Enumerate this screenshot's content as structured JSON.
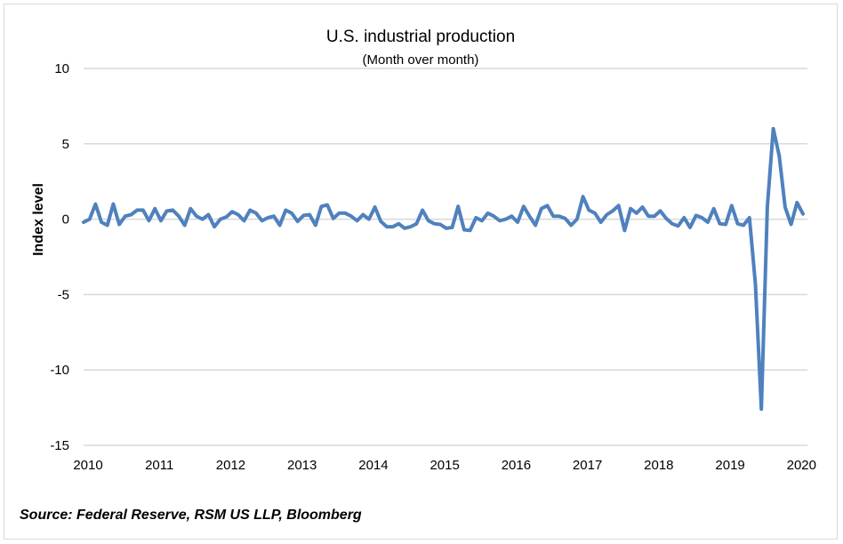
{
  "chart_data": {
    "type": "line",
    "title": "U.S. industrial production",
    "subtitle": "(Month over month)",
    "xlabel": "",
    "ylabel": "Index level",
    "ylim": [
      -15,
      10
    ],
    "yticks": [
      "10",
      "5",
      "0",
      "-5",
      "-10",
      "-15"
    ],
    "xticks": [
      "2010",
      "2011",
      "2012",
      "2013",
      "2014",
      "2015",
      "2016",
      "2017",
      "2018",
      "2019",
      "2020"
    ],
    "grid": true,
    "line_color": "#4f81bd",
    "values": [
      -0.2,
      0,
      1.0,
      -0.2,
      -0.4,
      1.0,
      -0.35,
      0.2,
      0.3,
      0.6,
      0.6,
      -0.1,
      0.7,
      -0.1,
      0.55,
      0.6,
      0.2,
      -0.4,
      0.7,
      0.2,
      0,
      0.3,
      -0.5,
      0,
      0.15,
      0.5,
      0.3,
      -0.1,
      0.6,
      0.4,
      -0.1,
      0.1,
      0.2,
      -0.4,
      0.6,
      0.4,
      -0.15,
      0.25,
      0.3,
      -0.4,
      0.85,
      0.95,
      0.05,
      0.4,
      0.4,
      0.2,
      -0.1,
      0.3,
      0,
      0.8,
      -0.15,
      -0.5,
      -0.5,
      -0.3,
      -0.6,
      -0.5,
      -0.3,
      0.6,
      -0.1,
      -0.3,
      -0.35,
      -0.6,
      -0.55,
      0.85,
      -0.7,
      -0.75,
      0.1,
      -0.1,
      0.4,
      0.2,
      -0.1,
      0,
      0.2,
      -0.2,
      0.85,
      0.2,
      -0.4,
      0.7,
      0.9,
      0.2,
      0.2,
      0.05,
      -0.4,
      0,
      1.5,
      0.6,
      0.4,
      -0.2,
      0.3,
      0.55,
      0.9,
      -0.75,
      0.7,
      0.4,
      0.8,
      0.2,
      0.2,
      0.55,
      0.05,
      -0.3,
      -0.45,
      0.1,
      -0.55,
      0.25,
      0.1,
      -0.2,
      0.7,
      -0.3,
      -0.35,
      0.9,
      -0.3,
      -0.4,
      0.1,
      -4.3,
      -12.6,
      0.8,
      6.0,
      4.2,
      0.8,
      -0.35,
      1.1,
      0.35
    ]
  },
  "source": "Source: Federal Reserve, RSM US LLP, Bloomberg"
}
